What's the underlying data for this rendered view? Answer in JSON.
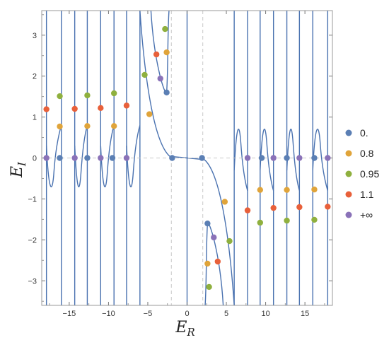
{
  "chart_data": {
    "type": "scatter",
    "title": "",
    "xlabel": {
      "main": "E",
      "sub": "R"
    },
    "ylabel": {
      "main": "E",
      "sub": "I"
    },
    "xlim": [
      -18.5,
      18.5
    ],
    "ylim": [
      -3.6,
      3.6
    ],
    "x_ticks": [
      -15,
      -10,
      -5,
      0,
      5,
      10,
      15
    ],
    "x_tick_labels": [
      "−15",
      "−10",
      "−5",
      "0",
      "5",
      "10",
      "15"
    ],
    "y_ticks": [
      -3,
      -2,
      -1,
      0,
      1,
      2,
      3
    ],
    "y_tick_labels": [
      "−3",
      "−2",
      "−1",
      "0",
      "1",
      "2",
      "3"
    ],
    "dashed_reference_lines": {
      "x": [
        -2,
        2
      ],
      "y": [
        0
      ]
    },
    "grid": false,
    "legend_position": "right",
    "curve_color": "#4a72b0",
    "asymptotes_x": [
      -17.9,
      -16,
      -14.3,
      -12.7,
      -11,
      -9.3,
      -7.7,
      -6.0,
      0,
      6.0,
      7.7,
      9.3,
      11,
      12.7,
      14.3,
      16,
      17.9
    ],
    "series": [
      {
        "name": "0.",
        "color": "#5b7fb4",
        "points": [
          [
            -16.2,
            0
          ],
          [
            -12.7,
            0
          ],
          [
            -9.5,
            0
          ],
          [
            -2.6,
            1.6
          ],
          [
            -1.9,
            0
          ],
          [
            1.9,
            0
          ],
          [
            2.6,
            -1.6
          ],
          [
            9.5,
            0
          ],
          [
            12.7,
            0
          ],
          [
            16.2,
            0
          ]
        ]
      },
      {
        "name": "0.8",
        "color": "#e0a43a",
        "points": [
          [
            -16.2,
            0.77
          ],
          [
            -12.7,
            0.78
          ],
          [
            -9.3,
            0.78
          ],
          [
            -4.8,
            1.07
          ],
          [
            -2.6,
            2.58
          ],
          [
            2.6,
            -2.58
          ],
          [
            4.8,
            -1.07
          ],
          [
            9.3,
            -0.78
          ],
          [
            12.7,
            -0.78
          ],
          [
            16.2,
            -0.77
          ]
        ]
      },
      {
        "name": "0.95",
        "color": "#8fb03e",
        "points": [
          [
            -16.2,
            1.51
          ],
          [
            -12.7,
            1.53
          ],
          [
            -9.3,
            1.58
          ],
          [
            -5.4,
            2.03
          ],
          [
            -2.8,
            3.15
          ],
          [
            2.8,
            -3.15
          ],
          [
            5.4,
            -2.03
          ],
          [
            9.3,
            -1.58
          ],
          [
            12.7,
            -1.53
          ],
          [
            16.2,
            -1.51
          ]
        ]
      },
      {
        "name": "1.1",
        "color": "#e8603a",
        "points": [
          [
            -17.9,
            1.19
          ],
          [
            -14.3,
            1.2
          ],
          [
            -11.0,
            1.22
          ],
          [
            -7.7,
            1.28
          ],
          [
            -3.9,
            2.53
          ],
          [
            3.9,
            -2.53
          ],
          [
            7.7,
            -1.28
          ],
          [
            11.0,
            -1.22
          ],
          [
            14.3,
            -1.2
          ],
          [
            17.9,
            -1.19
          ]
        ]
      },
      {
        "name": "+∞",
        "color": "#8a72b8",
        "points": [
          [
            -17.9,
            0
          ],
          [
            -14.3,
            0
          ],
          [
            -11.0,
            0
          ],
          [
            -7.7,
            0
          ],
          [
            -3.4,
            1.94
          ],
          [
            3.4,
            -1.94
          ],
          [
            7.7,
            0
          ],
          [
            11.0,
            0
          ],
          [
            14.3,
            0
          ],
          [
            17.9,
            0
          ]
        ]
      }
    ]
  }
}
